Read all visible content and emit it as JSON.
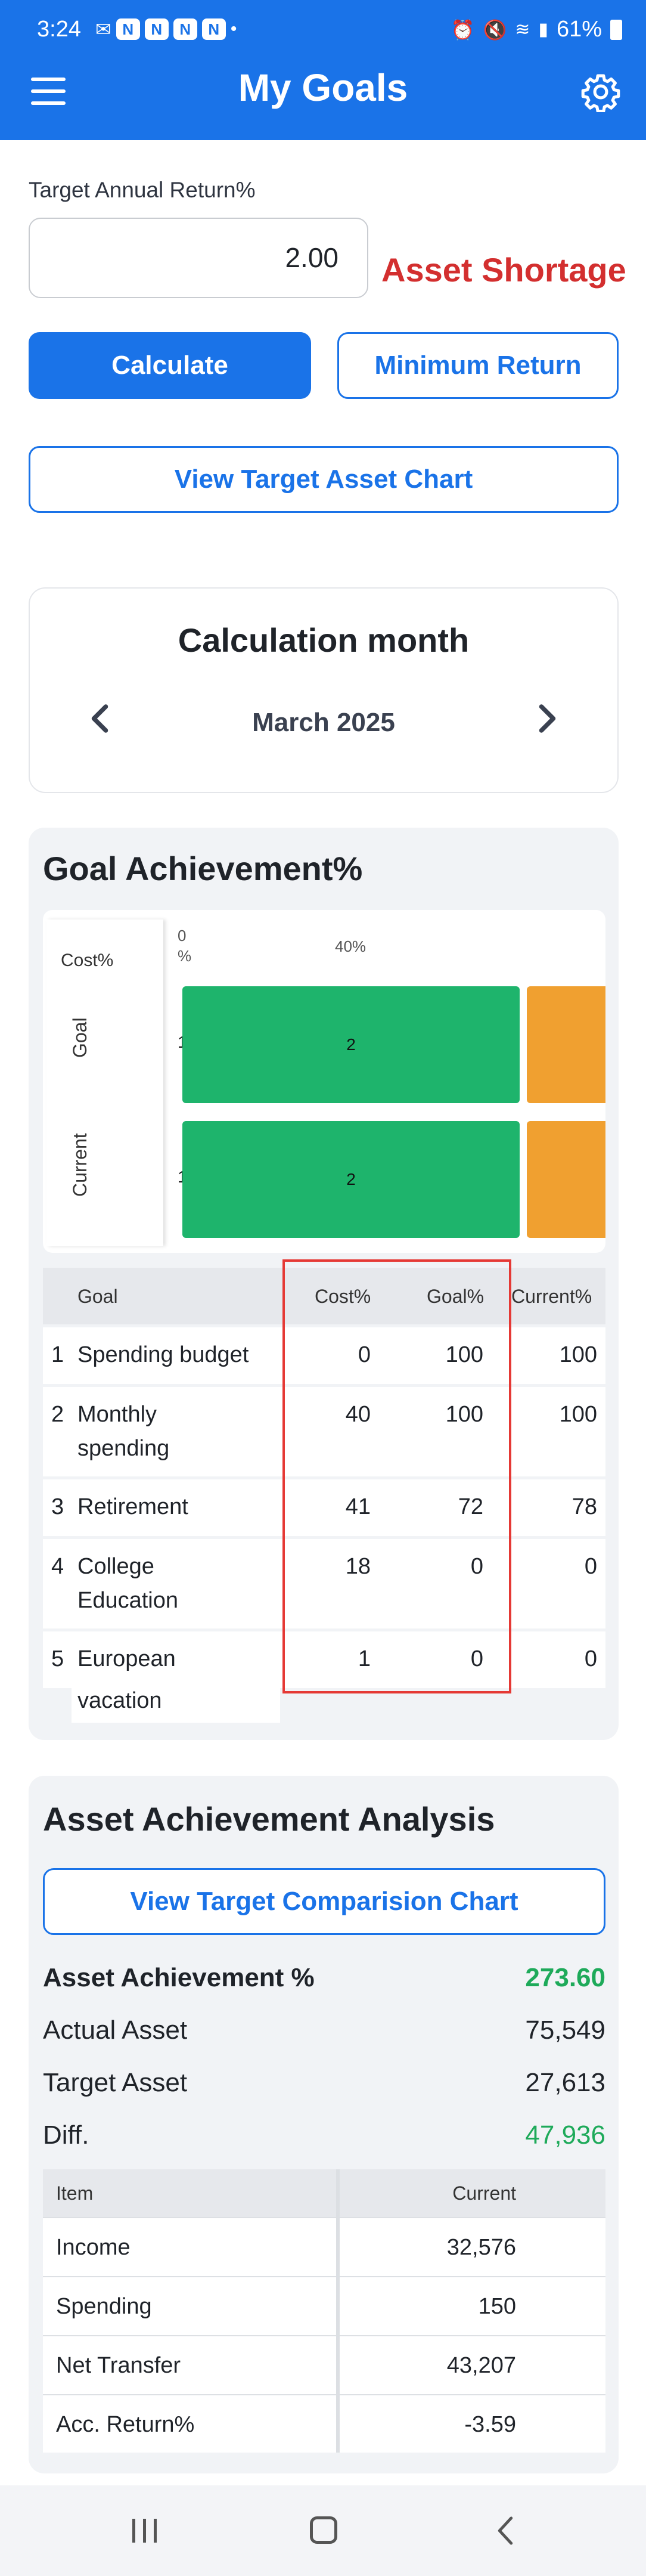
{
  "status_bar": {
    "time": "3:24",
    "battery": "61%"
  },
  "app_bar": {
    "title": "My Goals"
  },
  "target": {
    "label": "Target Annual Return%",
    "value": "2.00",
    "warning": "Asset Shortage",
    "calculate_label": "Calculate",
    "minimum_return_label": "Minimum Return",
    "view_chart_label": "View Target Asset Chart"
  },
  "calculation_month": {
    "title": "Calculation month",
    "value": "March 2025"
  },
  "goal_achievement": {
    "title": "Goal Achievement%",
    "chart_data": {
      "type": "bar",
      "orientation": "horizontal-stacked",
      "ylabel": "Cost%",
      "categories": [
        "Goal",
        "Current"
      ],
      "tick_labels": [
        "0\n%",
        "40%"
      ],
      "segment_labels": [
        "1",
        "2"
      ],
      "series": [
        {
          "label": "1",
          "values": [
            0,
            0
          ],
          "color": "#1eaa5a"
        },
        {
          "label": "2",
          "values": [
            40,
            40
          ],
          "color": "#1eb46c"
        },
        {
          "values": [
            41,
            41
          ],
          "color": "#f0a030"
        }
      ]
    },
    "table": {
      "headers": [
        "Goal",
        "Cost%",
        "Goal%",
        "Current%"
      ],
      "rows": [
        {
          "num": "1",
          "name_line1": "Spending budget",
          "name_line2": "",
          "cost": "0",
          "goal": "100",
          "current": "100"
        },
        {
          "num": "2",
          "name_line1": "Monthly",
          "name_line2": "spending",
          "cost": "40",
          "goal": "100",
          "current": "100"
        },
        {
          "num": "3",
          "name_line1": "Retirement",
          "name_line2": "",
          "cost": "41",
          "goal": "72",
          "current": "78"
        },
        {
          "num": "4",
          "name_line1": "College",
          "name_line2": "Education",
          "cost": "18",
          "goal": "0",
          "current": "0"
        },
        {
          "num": "5",
          "name_line1": "European",
          "name_line2": "vacation",
          "cost": "1",
          "goal": "0",
          "current": "0"
        }
      ]
    }
  },
  "asset_analysis": {
    "title": "Asset Achievement Analysis",
    "compare_label": "View Target Comparision Chart",
    "achievement_label": "Asset Achievement %",
    "achievement_value": "273.60",
    "actual_label": "Actual Asset",
    "actual_value": "75,549",
    "target_label": "Target Asset",
    "target_value": "27,613",
    "diff_label": "Diff.",
    "diff_value": "47,936",
    "table": {
      "headers": [
        "Item",
        "Current"
      ],
      "rows": [
        {
          "item": "Income",
          "current": "32,576"
        },
        {
          "item": "Spending",
          "current": "150"
        },
        {
          "item": "Net Transfer",
          "current": "43,207"
        },
        {
          "item": "Acc. Return%",
          "current": "-3.59"
        }
      ]
    }
  }
}
